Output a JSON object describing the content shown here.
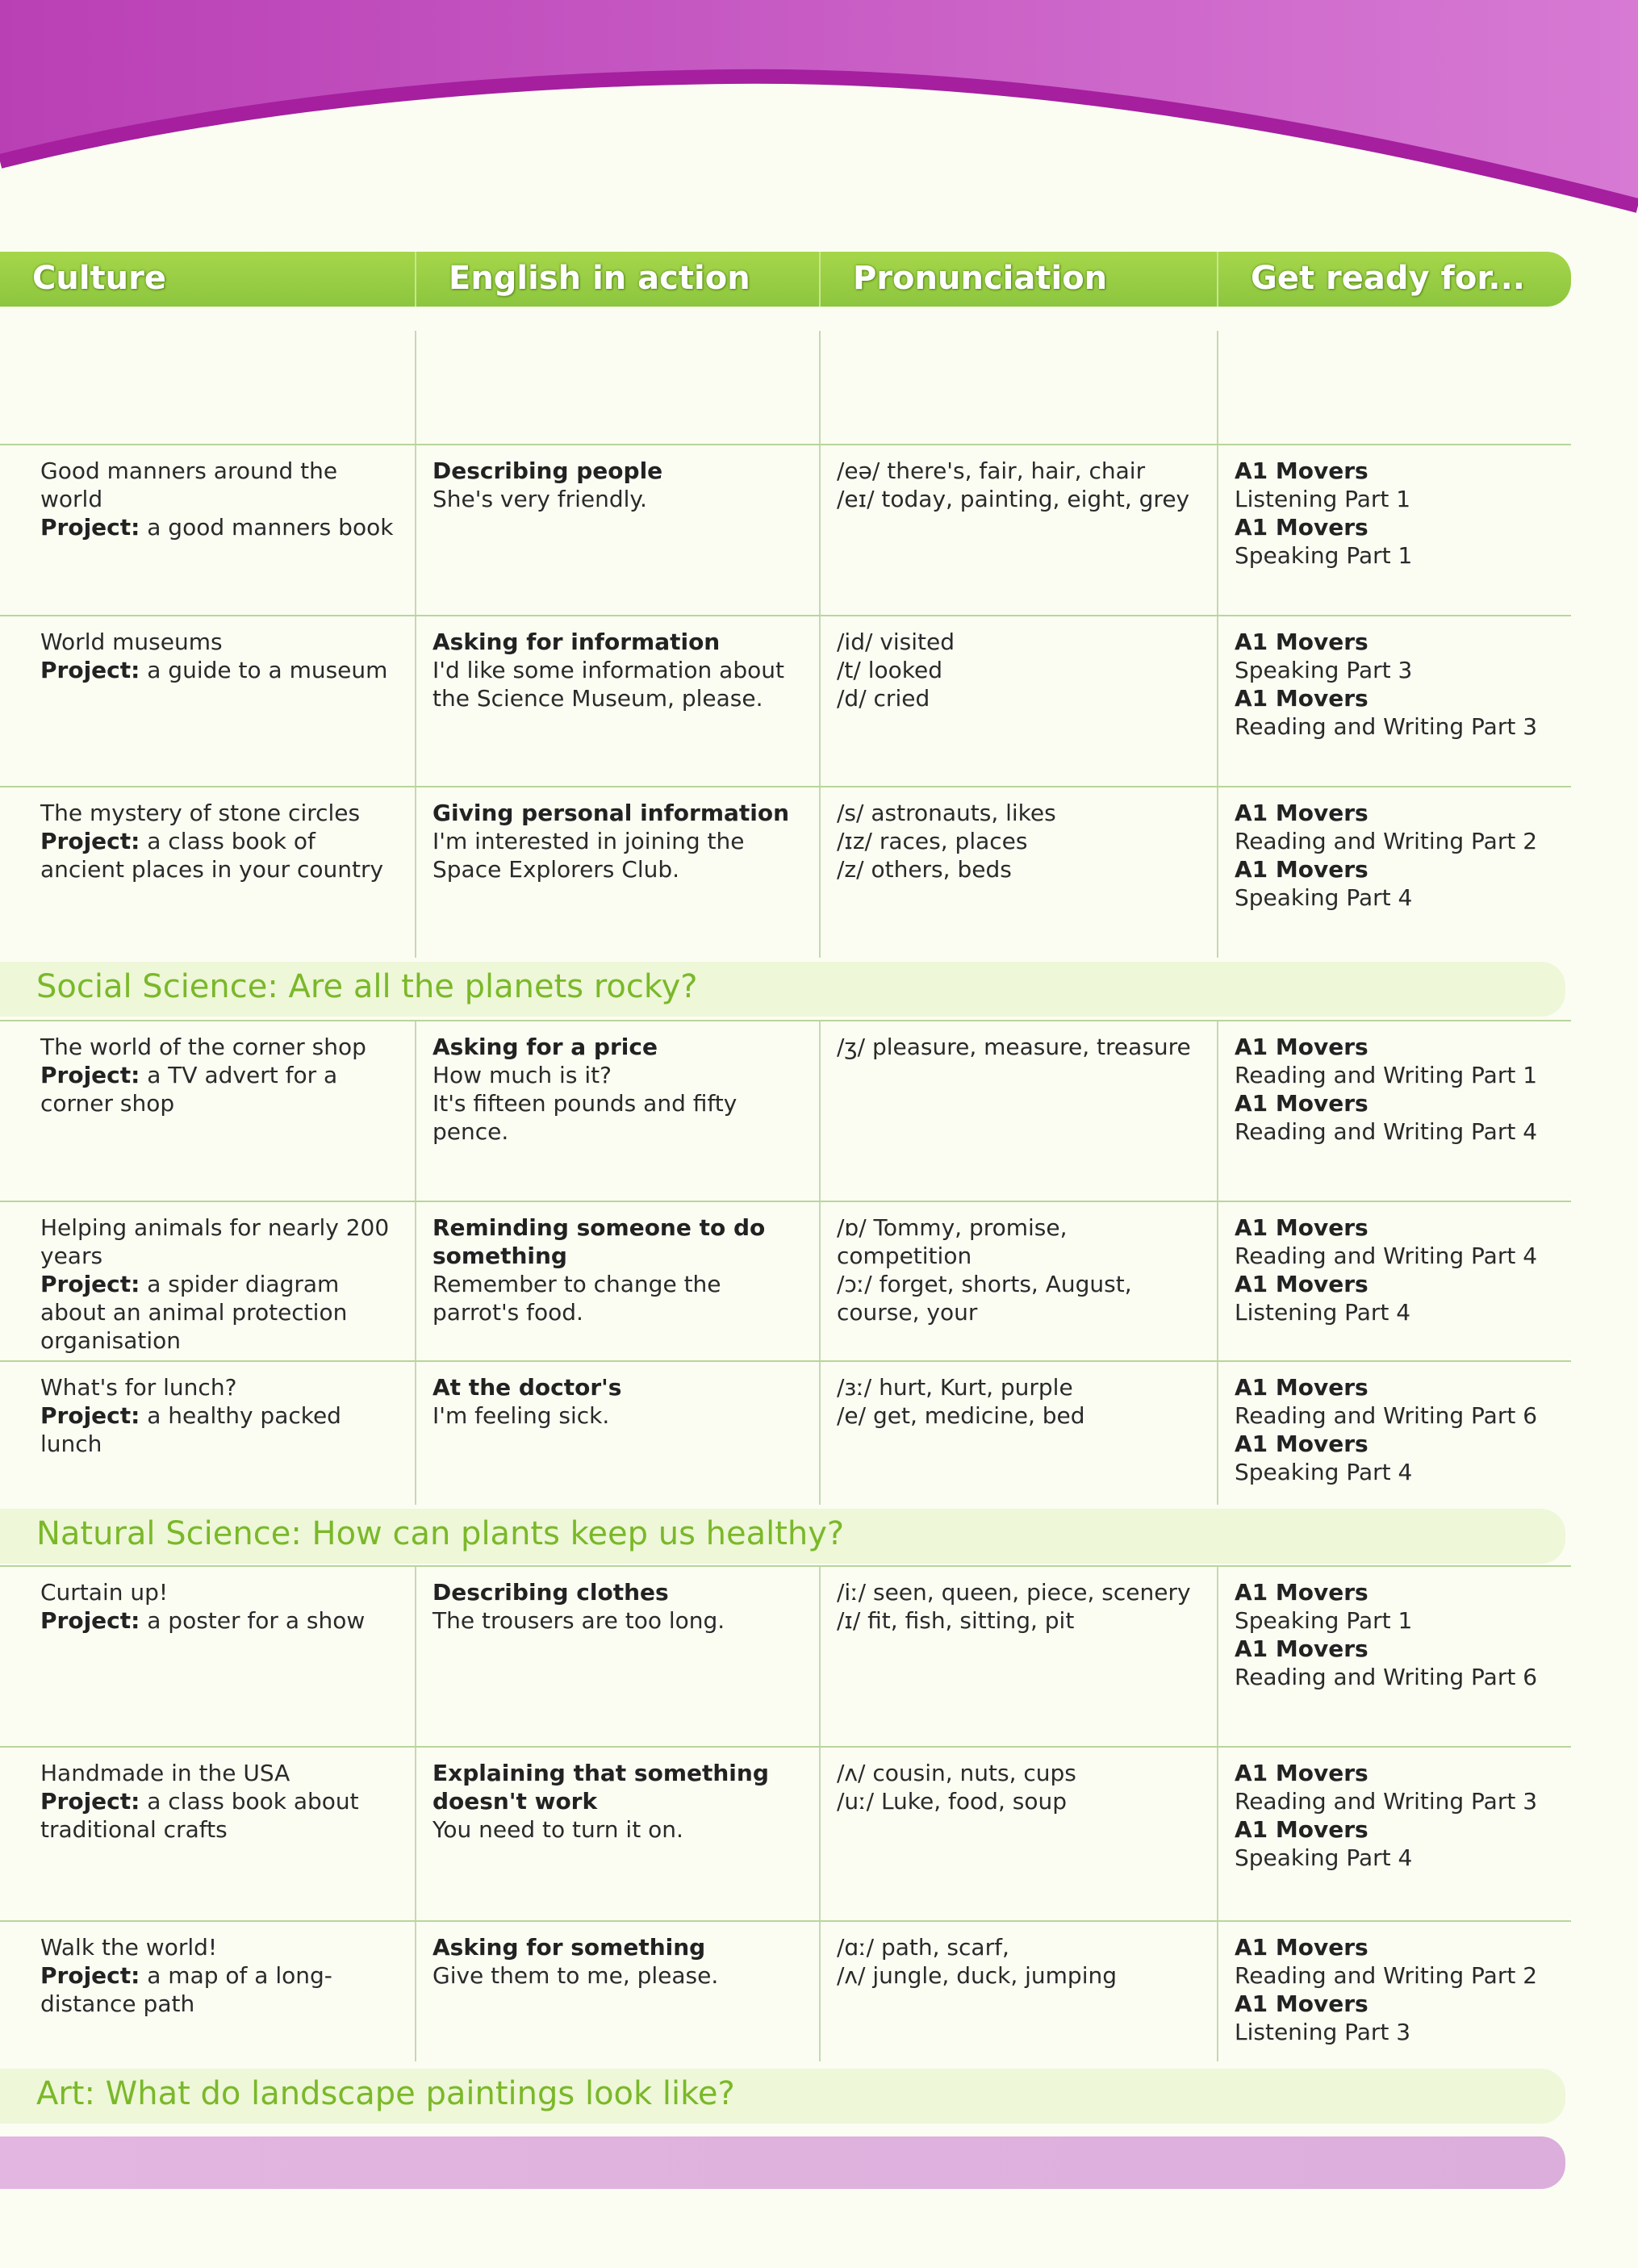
{
  "colors": {
    "accent_green": "#8cc63f",
    "section_green": "#7ab829",
    "banner_magenta": "#c24bc0"
  },
  "headers": [
    "Culture",
    "English in action",
    "Pronunciation",
    "Get ready for..."
  ],
  "project_label": "Project:",
  "rows": [
    {
      "culture": {
        "title": "Good manners around the world",
        "project": "a good manners book"
      },
      "english": {
        "title": "Describing people",
        "lines": [
          "She's very friendly."
        ]
      },
      "pron": [
        "/eə/ there's, fair, hair, chair",
        "/eɪ/ today, painting, eight, grey"
      ],
      "ready": [
        {
          "level": "A1 Movers",
          "part": "Listening Part 1"
        },
        {
          "level": "A1 Movers",
          "part": "Speaking Part 1"
        }
      ]
    },
    {
      "culture": {
        "title": "World museums",
        "project": "a guide to a museum"
      },
      "english": {
        "title": "Asking for information",
        "lines": [
          "I'd like some information about the Science Museum, please."
        ]
      },
      "pron": [
        "/id/ visited",
        "/t/ looked",
        "/d/ cried"
      ],
      "ready": [
        {
          "level": "A1 Movers",
          "part": "Speaking Part 3"
        },
        {
          "level": "A1 Movers",
          "part": "Reading and Writing Part 3"
        }
      ]
    },
    {
      "culture": {
        "title": "The mystery of stone circles",
        "project": "a class book of ancient places in your country"
      },
      "english": {
        "title": "Giving personal information",
        "lines": [
          "I'm interested in joining the Space Explorers Club."
        ]
      },
      "pron": [
        "/s/ astronauts, likes",
        "/ɪz/ races, places",
        "/z/ others, beds"
      ],
      "ready": [
        {
          "level": "A1 Movers",
          "part": "Reading and Writing Part 2"
        },
        {
          "level": "A1 Movers",
          "part": "Speaking Part 4"
        }
      ]
    },
    {
      "culture": {
        "title": "The world of the corner shop",
        "project": "a TV advert for a corner shop"
      },
      "english": {
        "title": "Asking for a price",
        "lines": [
          "How much is it?",
          "It's fifteen pounds and fifty pence."
        ]
      },
      "pron": [
        "/ʒ/ pleasure, measure, treasure"
      ],
      "ready": [
        {
          "level": "A1 Movers",
          "part": "Reading and Writing Part 1"
        },
        {
          "level": "A1 Movers",
          "part": "Reading and Writing Part 4"
        }
      ]
    },
    {
      "culture": {
        "title": "Helping animals for nearly 200 years",
        "project": "a spider diagram about an animal protection organisation"
      },
      "english": {
        "title": "Reminding someone to do something",
        "lines": [
          "Remember to change the parrot's food."
        ]
      },
      "pron": [
        "/ɒ/ Tommy, promise, competition",
        "/ɔː/ forget, shorts, August, course, your"
      ],
      "ready": [
        {
          "level": "A1 Movers",
          "part": "Reading and Writing Part 4"
        },
        {
          "level": "A1 Movers",
          "part": "Listening Part 4"
        }
      ]
    },
    {
      "culture": {
        "title": "What's for lunch?",
        "project": "a healthy packed lunch"
      },
      "english": {
        "title": "At the doctor's",
        "lines": [
          "I'm feeling sick."
        ]
      },
      "pron": [
        "/ɜː/ hurt, Kurt, purple",
        "/e/ get, medicine, bed"
      ],
      "ready": [
        {
          "level": "A1 Movers",
          "part": "Reading and Writing Part 6"
        },
        {
          "level": "A1 Movers",
          "part": "Speaking Part 4"
        }
      ]
    },
    {
      "culture": {
        "title": "Curtain up!",
        "project": "a poster for a show"
      },
      "english": {
        "title": "Describing clothes",
        "lines": [
          "The trousers are too long."
        ]
      },
      "pron": [
        "/iː/ seen, queen, piece, scenery",
        "/ɪ/ fit, fish, sitting, pit"
      ],
      "ready": [
        {
          "level": "A1 Movers",
          "part": "Speaking Part 1"
        },
        {
          "level": "A1 Movers",
          "part": "Reading and Writing Part 6"
        }
      ]
    },
    {
      "culture": {
        "title": "Handmade in the USA",
        "project": "a class book about traditional crafts"
      },
      "english": {
        "title": "Explaining that something doesn't work",
        "lines": [
          "You need to turn it on."
        ]
      },
      "pron": [
        "/ʌ/ cousin, nuts, cups",
        "/uː/ Luke, food, soup"
      ],
      "ready": [
        {
          "level": "A1 Movers",
          "part": "Reading and Writing Part 3"
        },
        {
          "level": "A1 Movers",
          "part": "Speaking Part 4"
        }
      ]
    },
    {
      "culture": {
        "title": "Walk the world!",
        "project": "a map of a long-distance path"
      },
      "english": {
        "title": "Asking for something",
        "lines": [
          "Give them to me, please."
        ]
      },
      "pron": [
        "/ɑː/ path, scarf,",
        "/ʌ/ jungle, duck, jumping"
      ],
      "ready": [
        {
          "level": "A1 Movers",
          "part": "Reading and Writing Part 2"
        },
        {
          "level": "A1 Movers",
          "part": "Listening Part 3"
        }
      ]
    }
  ],
  "sections": [
    "Social Science: Are all the planets rocky?",
    "Natural Science: How can plants keep us healthy?",
    "Art: What do landscape paintings look like?"
  ]
}
